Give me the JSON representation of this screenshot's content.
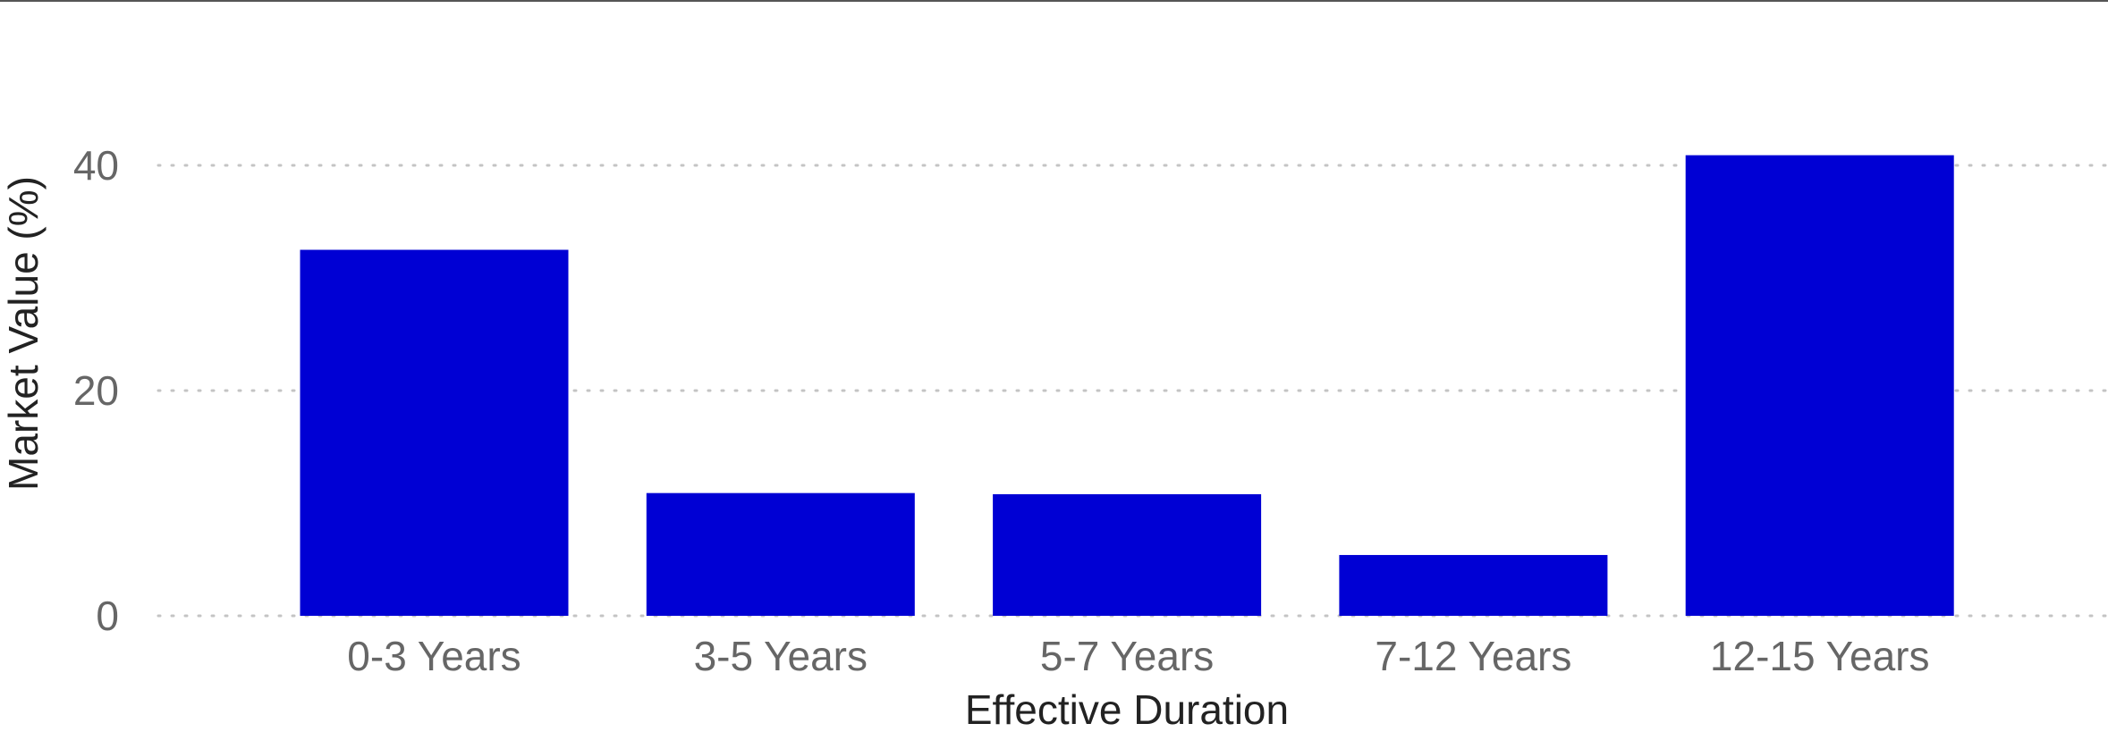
{
  "chart_data": {
    "type": "bar",
    "title": "",
    "xlabel": "Effective Duration",
    "ylabel": "Market Value (%)",
    "categories": [
      "0-3 Years",
      "3-5 Years",
      "5-7 Years",
      "7-12 Years",
      "12-15 Years"
    ],
    "values": [
      32.5,
      10.9,
      10.8,
      5.4,
      40.9
    ],
    "ylim": [
      0,
      50
    ],
    "yticks": [
      0,
      20,
      40
    ],
    "ytick_labels": [
      "0",
      "20",
      "40"
    ],
    "grid": {
      "y": true,
      "x": false,
      "style": "dotted"
    },
    "legend": "none",
    "colors": {
      "bar": "#0000d4",
      "grid": "#c4c4c4",
      "tick_label": "#666666",
      "axis_title": "#222222",
      "top_rule": "#555555"
    }
  }
}
